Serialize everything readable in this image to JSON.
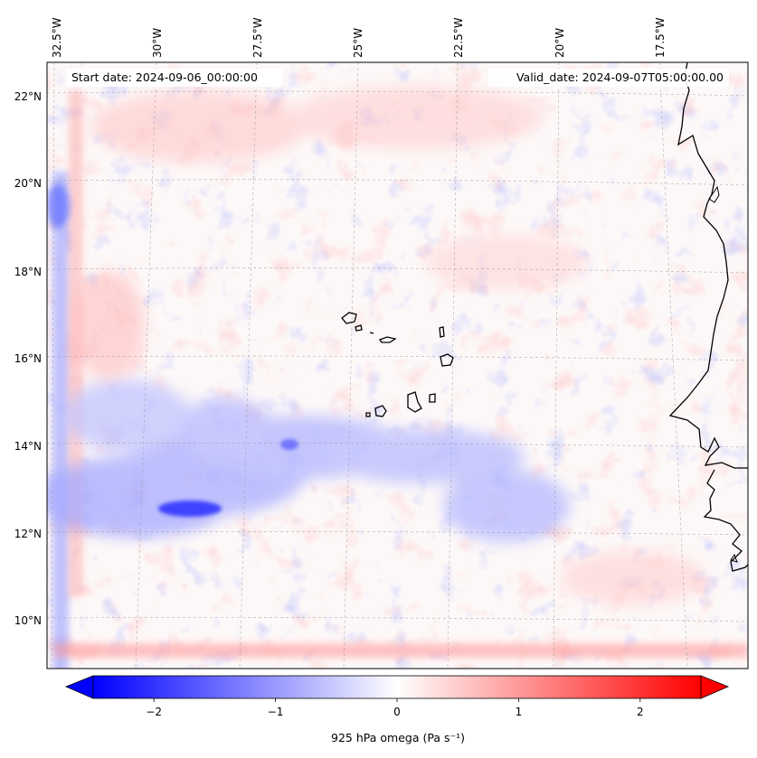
{
  "annotations": {
    "start_date": "Start date: 2024-09-06_00:00:00",
    "valid_date": "Valid_date: 2024-09-07T05:00:00.00"
  },
  "longitude_labels": [
    "32.5°W",
    "30°W",
    "27.5°W",
    "25°W",
    "22.5°W",
    "20°W",
    "17.5°W"
  ],
  "latitude_labels": [
    "22°N",
    "20°N",
    "18°N",
    "16°N",
    "14°N",
    "12°N",
    "10°N"
  ],
  "colorbar": {
    "label": "925 hPa omega (Pa s⁻¹)",
    "tick_labels": [
      "−2",
      "−1",
      "0",
      "1",
      "2"
    ],
    "tick_values": [
      -2,
      -1,
      0,
      1,
      2
    ],
    "range": [
      -2.5,
      2.5
    ],
    "extend": "both",
    "colormap": "bwr",
    "colors": {
      "negative": "#0000ff",
      "zero": "#ffffff",
      "positive": "#ff0000"
    }
  },
  "map": {
    "variable": "925 hPa omega",
    "units": "Pa s⁻¹",
    "lon_range": [
      -32.8,
      -16.1
    ],
    "lat_range": [
      8.9,
      22.8
    ],
    "gridlines": "dashed gray",
    "coastline_color": "#000000"
  }
}
